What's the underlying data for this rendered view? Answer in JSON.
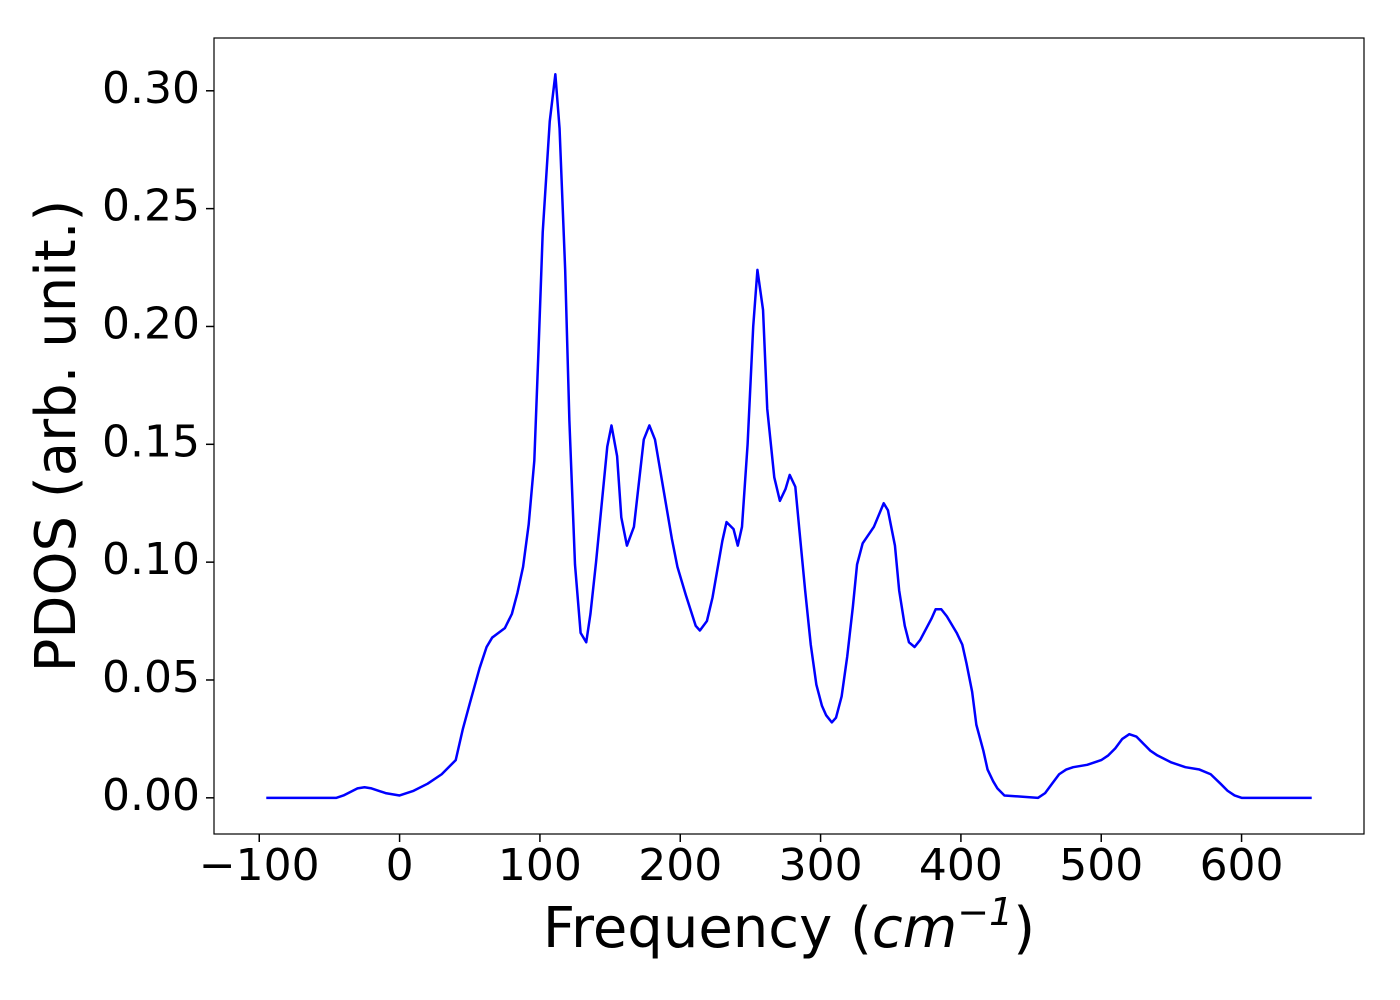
{
  "chart_data": {
    "type": "line",
    "ylabel": "PDOS (arb. unit.)",
    "xlabel": [
      "Frequency (",
      "cm",
      "−1",
      ")"
    ],
    "xlim": [
      -132.25,
      687.25
    ],
    "ylim": [
      -0.01535,
      0.3224
    ],
    "xticks": [
      {
        "value": -100,
        "label": "−100"
      },
      0,
      100,
      200,
      300,
      400,
      500,
      600
    ],
    "yticks": [
      {
        "value": 0,
        "label": "0.00"
      },
      {
        "value": 0.05,
        "label": "0.05"
      },
      {
        "value": 0.1,
        "label": "0.10"
      },
      {
        "value": 0.15,
        "label": "0.15"
      },
      {
        "value": 0.2,
        "label": "0.20"
      },
      {
        "value": 0.25,
        "label": "0.25"
      },
      {
        "value": 0.3,
        "label": "0.30"
      }
    ],
    "series": [
      {
        "color": "#0000ff",
        "x": [
          -95,
          -45,
          -40,
          -30,
          -25,
          -20,
          -10,
          0,
          10,
          20,
          30,
          40,
          45,
          50,
          57,
          62,
          66,
          75,
          80,
          84,
          88,
          92,
          96,
          99,
          102,
          107,
          111,
          114,
          118,
          121,
          125,
          129,
          133,
          136,
          140,
          148,
          151,
          155,
          158,
          162,
          167,
          174,
          178,
          182,
          194,
          198,
          204,
          211,
          214,
          219,
          223,
          230,
          233,
          238,
          241,
          244,
          248,
          252,
          255,
          259,
          262,
          267,
          271,
          275,
          278,
          282,
          285,
          289,
          293,
          297,
          301,
          304,
          308,
          311,
          315,
          319,
          323,
          326,
          330,
          338,
          345,
          348,
          353,
          356,
          360,
          363,
          367,
          371,
          379,
          382,
          386,
          390,
          397,
          401,
          404,
          408,
          411,
          416,
          419,
          423,
          426,
          431,
          455,
          460,
          465,
          470,
          475,
          480,
          490,
          500,
          505,
          510,
          515,
          520,
          525,
          530,
          535,
          540,
          550,
          560,
          570,
          578,
          585,
          590,
          595,
          600,
          650
        ],
        "values": [
          0,
          0,
          0.001,
          0.004,
          0.0045,
          0.004,
          0.002,
          0.001,
          0.003,
          0.006,
          0.01,
          0.016,
          0.029,
          0.04,
          0.055,
          0.064,
          0.068,
          0.072,
          0.078,
          0.087,
          0.098,
          0.116,
          0.143,
          0.19,
          0.24,
          0.287,
          0.307,
          0.284,
          0.224,
          0.16,
          0.099,
          0.07,
          0.066,
          0.078,
          0.1,
          0.149,
          0.158,
          0.145,
          0.119,
          0.107,
          0.115,
          0.152,
          0.158,
          0.152,
          0.11,
          0.098,
          0.086,
          0.073,
          0.071,
          0.075,
          0.085,
          0.109,
          0.117,
          0.114,
          0.107,
          0.115,
          0.15,
          0.2,
          0.224,
          0.207,
          0.165,
          0.136,
          0.126,
          0.131,
          0.137,
          0.132,
          0.113,
          0.088,
          0.065,
          0.048,
          0.039,
          0.035,
          0.032,
          0.034,
          0.043,
          0.06,
          0.081,
          0.099,
          0.108,
          0.115,
          0.125,
          0.122,
          0.107,
          0.088,
          0.073,
          0.066,
          0.064,
          0.067,
          0.076,
          0.08,
          0.08,
          0.077,
          0.07,
          0.065,
          0.057,
          0.045,
          0.031,
          0.02,
          0.012,
          0.007,
          0.004,
          0.001,
          0,
          0.002,
          0.006,
          0.01,
          0.012,
          0.013,
          0.014,
          0.016,
          0.018,
          0.021,
          0.025,
          0.027,
          0.026,
          0.023,
          0.02,
          0.018,
          0.015,
          0.013,
          0.012,
          0.01,
          0.006,
          0.003,
          0.001,
          0,
          0
        ]
      }
    ]
  }
}
